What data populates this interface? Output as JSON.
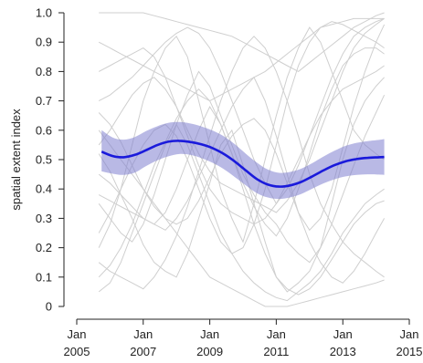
{
  "chart_data": {
    "type": "line",
    "title": "",
    "xlabel": "",
    "ylabel": "spatial extent index",
    "xlim": [
      "2005-01-01",
      "2015-01-01"
    ],
    "ylim": [
      0,
      1
    ],
    "x_ticks": [
      {
        "value": "2005-01-01",
        "line1": "Jan",
        "line2": "2005"
      },
      {
        "value": "2007-01-01",
        "line1": "Jan",
        "line2": "2007"
      },
      {
        "value": "2009-01-01",
        "line1": "Jan",
        "line2": "2009"
      },
      {
        "value": "2011-01-01",
        "line1": "Jan",
        "line2": "2011"
      },
      {
        "value": "2013-01-01",
        "line1": "Jan",
        "line2": "2013"
      },
      {
        "value": "2015-01-01",
        "line1": "Jan",
        "line2": "2015"
      }
    ],
    "y_ticks": [
      "0",
      "0.1",
      "0.2",
      "0.3",
      "0.4",
      "0.5",
      "0.6",
      "0.7",
      "0.8",
      "0.9",
      "1.0"
    ],
    "colors": {
      "trend": "#1a1adb",
      "band": "#8080d0",
      "background_series": "#cfcfcf",
      "axis": "#222222"
    },
    "trend": {
      "x": [
        "2005-10-01",
        "2006-02-01",
        "2006-06-01",
        "2006-10-01",
        "2007-02-01",
        "2007-06-01",
        "2007-10-01",
        "2008-02-01",
        "2008-06-01",
        "2008-10-01",
        "2009-02-01",
        "2009-06-01",
        "2009-10-01",
        "2010-02-01",
        "2010-06-01",
        "2010-10-01",
        "2011-02-01",
        "2011-06-01",
        "2011-10-01",
        "2012-02-01",
        "2012-06-01",
        "2012-10-01",
        "2013-02-01",
        "2013-06-01",
        "2013-10-01",
        "2014-02-01",
        "2014-04-01"
      ],
      "mean": [
        0.527,
        0.512,
        0.508,
        0.516,
        0.532,
        0.549,
        0.561,
        0.564,
        0.56,
        0.552,
        0.539,
        0.52,
        0.494,
        0.463,
        0.434,
        0.415,
        0.408,
        0.412,
        0.424,
        0.443,
        0.463,
        0.481,
        0.494,
        0.502,
        0.506,
        0.508,
        0.509
      ],
      "lower": [
        0.46,
        0.452,
        0.448,
        0.456,
        0.478,
        0.497,
        0.511,
        0.519,
        0.516,
        0.505,
        0.489,
        0.468,
        0.441,
        0.412,
        0.386,
        0.371,
        0.366,
        0.371,
        0.383,
        0.401,
        0.419,
        0.433,
        0.443,
        0.448,
        0.45,
        0.449,
        0.448
      ],
      "upper": [
        0.6,
        0.575,
        0.568,
        0.577,
        0.597,
        0.613,
        0.625,
        0.628,
        0.623,
        0.613,
        0.599,
        0.58,
        0.553,
        0.52,
        0.49,
        0.466,
        0.455,
        0.458,
        0.469,
        0.488,
        0.51,
        0.53,
        0.547,
        0.557,
        0.563,
        0.567,
        0.57
      ]
    },
    "background_series_x": [
      "2005-09-01",
      "2006-01-01",
      "2006-05-01",
      "2006-09-01",
      "2007-01-01",
      "2007-05-01",
      "2007-09-01",
      "2008-01-01",
      "2008-05-01",
      "2008-09-01",
      "2009-01-01",
      "2009-05-01",
      "2009-09-01",
      "2010-01-01",
      "2010-05-01",
      "2010-09-01",
      "2011-01-01",
      "2011-05-01",
      "2011-09-01",
      "2012-01-01",
      "2012-05-01",
      "2012-09-01",
      "2013-01-01",
      "2013-05-01",
      "2013-09-01",
      "2014-01-01",
      "2014-04-01"
    ],
    "background_series": [
      [
        0.52,
        0.46,
        0.38,
        0.3,
        0.21,
        0.15,
        0.12,
        0.1,
        0.18,
        0.3,
        0.42,
        0.55,
        0.6,
        0.48,
        0.35,
        0.22,
        0.1,
        0.05,
        0.08,
        0.12,
        0.2,
        0.35,
        0.5,
        0.62,
        0.7,
        0.75,
        0.78
      ],
      [
        0.2,
        0.28,
        0.4,
        0.55,
        0.7,
        0.8,
        0.88,
        0.92,
        0.85,
        0.7,
        0.55,
        0.4,
        0.3,
        0.22,
        0.35,
        0.5,
        0.65,
        0.78,
        0.88,
        0.95,
        0.9,
        0.8,
        0.7,
        0.6,
        0.55,
        0.52,
        0.5
      ],
      [
        1.0,
        1.0,
        1.0,
        1.0,
        1.0,
        0.99,
        0.98,
        0.97,
        0.96,
        0.95,
        0.94,
        0.93,
        0.92,
        0.9,
        0.88,
        0.86,
        0.84,
        0.82,
        0.8,
        0.83,
        0.86,
        0.89,
        0.92,
        0.95,
        0.97,
        0.99,
        1.0
      ],
      [
        0.9,
        0.88,
        0.86,
        0.84,
        0.82,
        0.8,
        0.78,
        0.76,
        0.74,
        0.72,
        0.7,
        0.72,
        0.74,
        0.76,
        0.78,
        0.8,
        0.83,
        0.86,
        0.89,
        0.92,
        0.95,
        0.96,
        0.97,
        0.98,
        0.98,
        0.98,
        0.98
      ],
      [
        0.05,
        0.08,
        0.15,
        0.25,
        0.35,
        0.45,
        0.55,
        0.62,
        0.55,
        0.45,
        0.35,
        0.25,
        0.18,
        0.12,
        0.08,
        0.05,
        0.03,
        0.02,
        0.05,
        0.08,
        0.12,
        0.18,
        0.25,
        0.3,
        0.35,
        0.38,
        0.4
      ],
      [
        0.7,
        0.72,
        0.75,
        0.78,
        0.82,
        0.86,
        0.9,
        0.93,
        0.95,
        0.93,
        0.88,
        0.8,
        0.7,
        0.6,
        0.5,
        0.42,
        0.35,
        0.4,
        0.48,
        0.58,
        0.68,
        0.78,
        0.86,
        0.92,
        0.95,
        0.97,
        0.98
      ],
      [
        0.35,
        0.3,
        0.25,
        0.22,
        0.28,
        0.38,
        0.5,
        0.62,
        0.72,
        0.8,
        0.75,
        0.65,
        0.55,
        0.45,
        0.38,
        0.32,
        0.28,
        0.22,
        0.18,
        0.15,
        0.2,
        0.28,
        0.38,
        0.48,
        0.58,
        0.66,
        0.72
      ],
      [
        0.6,
        0.55,
        0.5,
        0.45,
        0.4,
        0.35,
        0.3,
        0.25,
        0.2,
        0.15,
        0.1,
        0.08,
        0.06,
        0.04,
        0.02,
        0.0,
        0.0,
        0.0,
        0.01,
        0.02,
        0.03,
        0.04,
        0.05,
        0.06,
        0.07,
        0.08,
        0.09
      ],
      [
        0.25,
        0.32,
        0.4,
        0.48,
        0.55,
        0.6,
        0.62,
        0.58,
        0.5,
        0.4,
        0.3,
        0.22,
        0.18,
        0.2,
        0.28,
        0.4,
        0.55,
        0.7,
        0.82,
        0.9,
        0.95,
        0.97,
        0.96,
        0.94,
        0.92,
        0.9,
        0.88
      ],
      [
        0.8,
        0.82,
        0.84,
        0.86,
        0.88,
        0.85,
        0.78,
        0.68,
        0.58,
        0.48,
        0.4,
        0.35,
        0.32,
        0.3,
        0.28,
        0.3,
        0.35,
        0.42,
        0.5,
        0.58,
        0.65,
        0.7,
        0.74,
        0.76,
        0.78,
        0.8,
        0.82
      ],
      [
        0.45,
        0.42,
        0.38,
        0.34,
        0.3,
        0.28,
        0.26,
        0.3,
        0.36,
        0.44,
        0.52,
        0.6,
        0.68,
        0.74,
        0.78,
        0.7,
        0.58,
        0.45,
        0.32,
        0.22,
        0.15,
        0.1,
        0.08,
        0.12,
        0.18,
        0.25,
        0.3
      ],
      [
        0.15,
        0.12,
        0.1,
        0.08,
        0.06,
        0.1,
        0.16,
        0.24,
        0.34,
        0.46,
        0.58,
        0.7,
        0.8,
        0.88,
        0.92,
        0.88,
        0.8,
        0.7,
        0.58,
        0.45,
        0.35,
        0.28,
        0.22,
        0.18,
        0.15,
        0.12,
        0.1
      ],
      [
        0.55,
        0.6,
        0.66,
        0.72,
        0.76,
        0.78,
        0.74,
        0.68,
        0.6,
        0.52,
        0.46,
        0.42,
        0.4,
        0.38,
        0.36,
        0.34,
        0.32,
        0.36,
        0.42,
        0.5,
        0.6,
        0.7,
        0.8,
        0.88,
        0.93,
        0.96,
        0.98
      ],
      [
        0.38,
        0.36,
        0.34,
        0.32,
        0.3,
        0.28,
        0.32,
        0.4,
        0.5,
        0.6,
        0.68,
        0.62,
        0.52,
        0.4,
        0.28,
        0.18,
        0.1,
        0.06,
        0.04,
        0.06,
        0.1,
        0.16,
        0.22,
        0.28,
        0.32,
        0.35,
        0.36
      ],
      [
        0.66,
        0.62,
        0.56,
        0.48,
        0.4,
        0.34,
        0.3,
        0.28,
        0.3,
        0.36,
        0.44,
        0.52,
        0.58,
        0.62,
        0.64,
        0.6,
        0.52,
        0.42,
        0.32,
        0.26,
        0.3,
        0.4,
        0.54,
        0.68,
        0.8,
        0.9,
        0.96
      ],
      [
        0.1,
        0.14,
        0.2,
        0.28,
        0.38,
        0.48,
        0.56,
        0.64,
        0.7,
        0.74,
        0.7,
        0.62,
        0.52,
        0.42,
        0.34,
        0.28,
        0.24,
        0.3,
        0.4,
        0.52,
        0.64,
        0.74,
        0.82,
        0.86,
        0.88,
        0.88,
        0.86
      ]
    ]
  }
}
